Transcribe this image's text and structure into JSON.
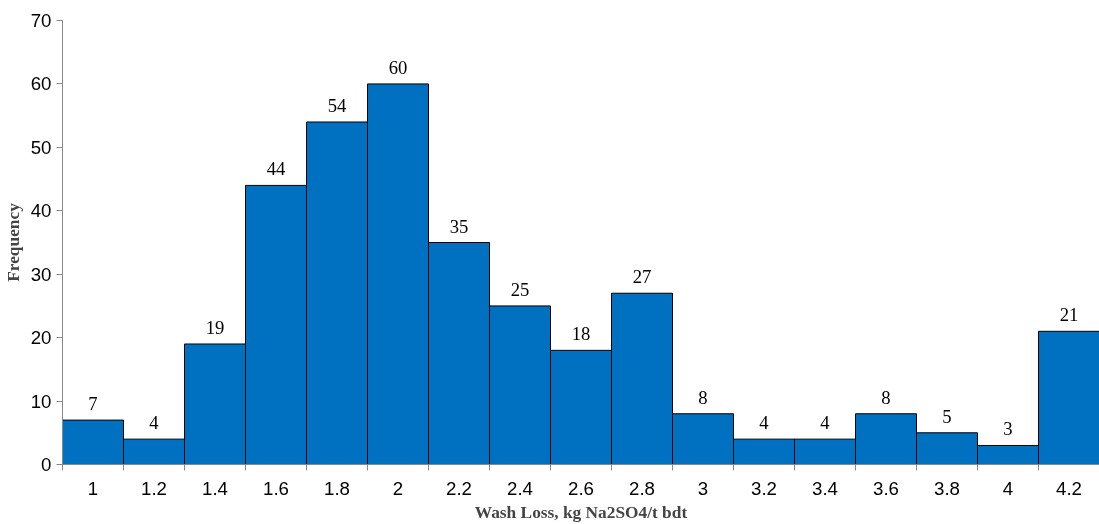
{
  "chart_data": {
    "type": "bar",
    "xlabel": "Wash Loss, kg Na2SO4/t bdt",
    "ylabel": "Frequency",
    "categories": [
      "1",
      "1.2",
      "1.4",
      "1.6",
      "1.8",
      "2",
      "2.2",
      "2.4",
      "2.6",
      "2.8",
      "3",
      "3.2",
      "3.4",
      "3.6",
      "3.8",
      "4",
      "4.2"
    ],
    "values": [
      7,
      4,
      19,
      44,
      54,
      60,
      35,
      25,
      18,
      27,
      8,
      4,
      4,
      8,
      5,
      3,
      21
    ],
    "color": "#0070c0",
    "ylim": [
      0,
      70
    ],
    "yticks": [
      0,
      10,
      20,
      30,
      40,
      50,
      60,
      70
    ],
    "grid": false,
    "data_labels": true
  }
}
